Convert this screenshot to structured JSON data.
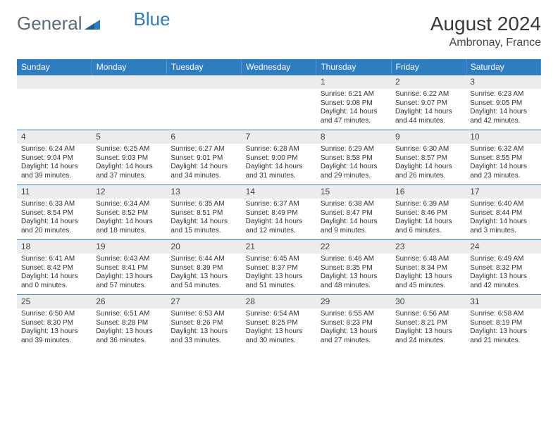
{
  "logo": {
    "part1": "General",
    "part2": "Blue"
  },
  "title": "August 2024",
  "location": "Ambronay, France",
  "colors": {
    "header_bg": "#2f7dc1",
    "header_text": "#ffffff",
    "daynum_bg": "#ececec",
    "border": "#2f7dc1",
    "text": "#333333"
  },
  "weekdays": [
    "Sunday",
    "Monday",
    "Tuesday",
    "Wednesday",
    "Thursday",
    "Friday",
    "Saturday"
  ],
  "weeks": [
    [
      null,
      null,
      null,
      null,
      {
        "d": "1",
        "sr": "Sunrise: 6:21 AM",
        "ss": "Sunset: 9:08 PM",
        "dl": "Daylight: 14 hours and 47 minutes."
      },
      {
        "d": "2",
        "sr": "Sunrise: 6:22 AM",
        "ss": "Sunset: 9:07 PM",
        "dl": "Daylight: 14 hours and 44 minutes."
      },
      {
        "d": "3",
        "sr": "Sunrise: 6:23 AM",
        "ss": "Sunset: 9:05 PM",
        "dl": "Daylight: 14 hours and 42 minutes."
      }
    ],
    [
      {
        "d": "4",
        "sr": "Sunrise: 6:24 AM",
        "ss": "Sunset: 9:04 PM",
        "dl": "Daylight: 14 hours and 39 minutes."
      },
      {
        "d": "5",
        "sr": "Sunrise: 6:25 AM",
        "ss": "Sunset: 9:03 PM",
        "dl": "Daylight: 14 hours and 37 minutes."
      },
      {
        "d": "6",
        "sr": "Sunrise: 6:27 AM",
        "ss": "Sunset: 9:01 PM",
        "dl": "Daylight: 14 hours and 34 minutes."
      },
      {
        "d": "7",
        "sr": "Sunrise: 6:28 AM",
        "ss": "Sunset: 9:00 PM",
        "dl": "Daylight: 14 hours and 31 minutes."
      },
      {
        "d": "8",
        "sr": "Sunrise: 6:29 AM",
        "ss": "Sunset: 8:58 PM",
        "dl": "Daylight: 14 hours and 29 minutes."
      },
      {
        "d": "9",
        "sr": "Sunrise: 6:30 AM",
        "ss": "Sunset: 8:57 PM",
        "dl": "Daylight: 14 hours and 26 minutes."
      },
      {
        "d": "10",
        "sr": "Sunrise: 6:32 AM",
        "ss": "Sunset: 8:55 PM",
        "dl": "Daylight: 14 hours and 23 minutes."
      }
    ],
    [
      {
        "d": "11",
        "sr": "Sunrise: 6:33 AM",
        "ss": "Sunset: 8:54 PM",
        "dl": "Daylight: 14 hours and 20 minutes."
      },
      {
        "d": "12",
        "sr": "Sunrise: 6:34 AM",
        "ss": "Sunset: 8:52 PM",
        "dl": "Daylight: 14 hours and 18 minutes."
      },
      {
        "d": "13",
        "sr": "Sunrise: 6:35 AM",
        "ss": "Sunset: 8:51 PM",
        "dl": "Daylight: 14 hours and 15 minutes."
      },
      {
        "d": "14",
        "sr": "Sunrise: 6:37 AM",
        "ss": "Sunset: 8:49 PM",
        "dl": "Daylight: 14 hours and 12 minutes."
      },
      {
        "d": "15",
        "sr": "Sunrise: 6:38 AM",
        "ss": "Sunset: 8:47 PM",
        "dl": "Daylight: 14 hours and 9 minutes."
      },
      {
        "d": "16",
        "sr": "Sunrise: 6:39 AM",
        "ss": "Sunset: 8:46 PM",
        "dl": "Daylight: 14 hours and 6 minutes."
      },
      {
        "d": "17",
        "sr": "Sunrise: 6:40 AM",
        "ss": "Sunset: 8:44 PM",
        "dl": "Daylight: 14 hours and 3 minutes."
      }
    ],
    [
      {
        "d": "18",
        "sr": "Sunrise: 6:41 AM",
        "ss": "Sunset: 8:42 PM",
        "dl": "Daylight: 14 hours and 0 minutes."
      },
      {
        "d": "19",
        "sr": "Sunrise: 6:43 AM",
        "ss": "Sunset: 8:41 PM",
        "dl": "Daylight: 13 hours and 57 minutes."
      },
      {
        "d": "20",
        "sr": "Sunrise: 6:44 AM",
        "ss": "Sunset: 8:39 PM",
        "dl": "Daylight: 13 hours and 54 minutes."
      },
      {
        "d": "21",
        "sr": "Sunrise: 6:45 AM",
        "ss": "Sunset: 8:37 PM",
        "dl": "Daylight: 13 hours and 51 minutes."
      },
      {
        "d": "22",
        "sr": "Sunrise: 6:46 AM",
        "ss": "Sunset: 8:35 PM",
        "dl": "Daylight: 13 hours and 48 minutes."
      },
      {
        "d": "23",
        "sr": "Sunrise: 6:48 AM",
        "ss": "Sunset: 8:34 PM",
        "dl": "Daylight: 13 hours and 45 minutes."
      },
      {
        "d": "24",
        "sr": "Sunrise: 6:49 AM",
        "ss": "Sunset: 8:32 PM",
        "dl": "Daylight: 13 hours and 42 minutes."
      }
    ],
    [
      {
        "d": "25",
        "sr": "Sunrise: 6:50 AM",
        "ss": "Sunset: 8:30 PM",
        "dl": "Daylight: 13 hours and 39 minutes."
      },
      {
        "d": "26",
        "sr": "Sunrise: 6:51 AM",
        "ss": "Sunset: 8:28 PM",
        "dl": "Daylight: 13 hours and 36 minutes."
      },
      {
        "d": "27",
        "sr": "Sunrise: 6:53 AM",
        "ss": "Sunset: 8:26 PM",
        "dl": "Daylight: 13 hours and 33 minutes."
      },
      {
        "d": "28",
        "sr": "Sunrise: 6:54 AM",
        "ss": "Sunset: 8:25 PM",
        "dl": "Daylight: 13 hours and 30 minutes."
      },
      {
        "d": "29",
        "sr": "Sunrise: 6:55 AM",
        "ss": "Sunset: 8:23 PM",
        "dl": "Daylight: 13 hours and 27 minutes."
      },
      {
        "d": "30",
        "sr": "Sunrise: 6:56 AM",
        "ss": "Sunset: 8:21 PM",
        "dl": "Daylight: 13 hours and 24 minutes."
      },
      {
        "d": "31",
        "sr": "Sunrise: 6:58 AM",
        "ss": "Sunset: 8:19 PM",
        "dl": "Daylight: 13 hours and 21 minutes."
      }
    ]
  ]
}
